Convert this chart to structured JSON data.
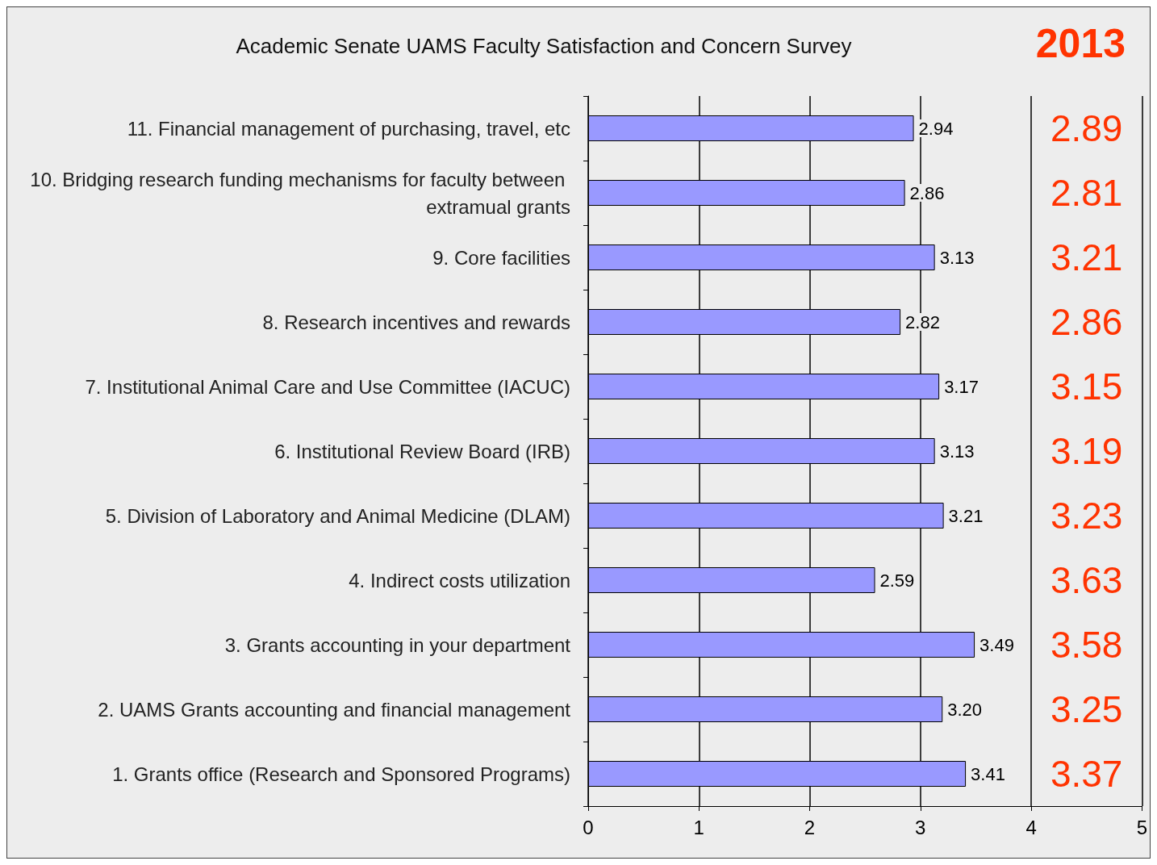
{
  "chart_data": {
    "type": "bar",
    "orientation": "horizontal",
    "title": "Academic Senate UAMS Faculty Satisfaction and Concern Survey",
    "categories": [
      "11. Financial management of purchasing, travel, etc",
      "10. Bridging research funding mechanisms for faculty between extramual grants",
      "9. Core facilities",
      "8. Research incentives and rewards",
      "7. Institutional Animal Care and Use Committee (IACUC)",
      "6. Institutional Review Board (IRB)",
      "5. Division of Laboratory and Animal Medicine (DLAM)",
      "4. Indirect costs utilization",
      "3. Grants accounting in your department",
      "2. UAMS Grants accounting and financial management",
      "1. Grants office (Research and Sponsored Programs)"
    ],
    "values": [
      2.94,
      2.86,
      3.13,
      2.82,
      3.17,
      3.13,
      3.21,
      2.59,
      3.49,
      3.2,
      3.41
    ],
    "value_labels": [
      "2.94",
      "2.86",
      "3.13",
      "2.82",
      "3.17",
      "3.13",
      "3.21",
      "2.59",
      "3.49",
      "3.20",
      "3.41"
    ],
    "color": "#9999ff",
    "xlim": [
      0,
      5
    ],
    "xticks": [
      0,
      1,
      2,
      3,
      4,
      5
    ],
    "grid": "x",
    "annotations": [
      "2013",
      "2.89",
      "2.81",
      "3.21",
      "2.86",
      "3.15",
      "3.19",
      "3.23",
      "3.63",
      "3.58",
      "3.25",
      "3.37"
    ]
  }
}
